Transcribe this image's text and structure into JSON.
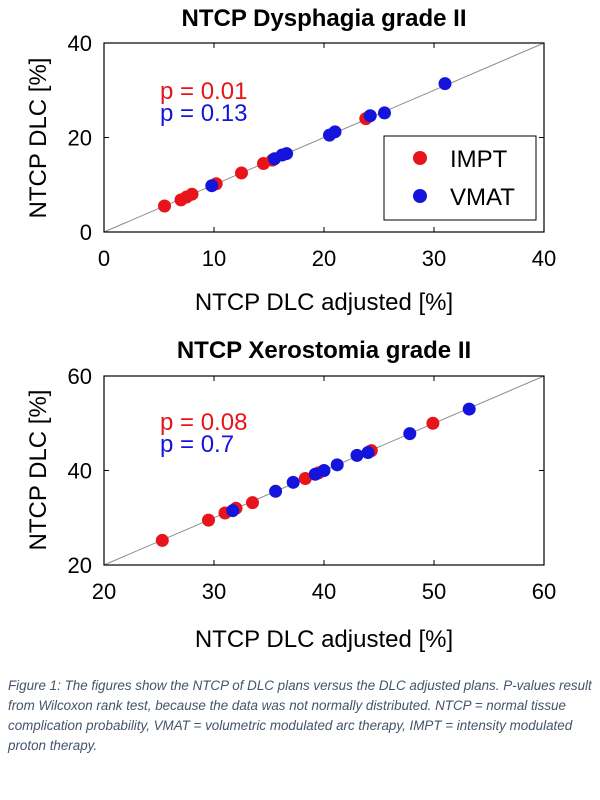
{
  "chart_data": [
    {
      "type": "scatter",
      "title": "NTCP Dysphagia grade II",
      "xlabel": "NTCP DLC adjusted [%]",
      "ylabel": "NTCP DLC [%]",
      "xlim": [
        0,
        40
      ],
      "ylim": [
        0,
        40
      ],
      "xticks": [
        "0",
        "10",
        "20",
        "30",
        "40"
      ],
      "yticks": [
        "0",
        "20",
        "40"
      ],
      "xtick_values": [
        0,
        10,
        20,
        30,
        40
      ],
      "ytick_values": [
        0,
        20,
        40
      ],
      "grid": false,
      "identity_line": true,
      "legend_position": "bottom-right",
      "annotations": [
        {
          "text": "p = 0.01",
          "color": "#e8141c"
        },
        {
          "text": "p = 0.13",
          "color": "#1414dc"
        }
      ],
      "series": [
        {
          "name": "IMPT",
          "color": "#e8141c",
          "points": [
            [
              5.5,
              5.5
            ],
            [
              7.0,
              6.8
            ],
            [
              7.5,
              7.4
            ],
            [
              8.0,
              8.0
            ],
            [
              10.2,
              10.2
            ],
            [
              12.5,
              12.5
            ],
            [
              14.5,
              14.5
            ],
            [
              15.3,
              15.2
            ],
            [
              23.8,
              24.0
            ]
          ]
        },
        {
          "name": "VMAT",
          "color": "#1414dc",
          "points": [
            [
              9.8,
              9.8
            ],
            [
              15.5,
              15.5
            ],
            [
              16.2,
              16.3
            ],
            [
              16.6,
              16.6
            ],
            [
              20.5,
              20.5
            ],
            [
              21.0,
              21.2
            ],
            [
              24.2,
              24.6
            ],
            [
              25.5,
              25.2
            ],
            [
              31.0,
              31.4
            ]
          ]
        }
      ]
    },
    {
      "type": "scatter",
      "title": "NTCP Xerostomia grade II",
      "xlabel": "NTCP DLC adjusted [%]",
      "ylabel": "NTCP DLC [%]",
      "xlim": [
        20,
        60
      ],
      "ylim": [
        20,
        60
      ],
      "xticks": [
        "20",
        "30",
        "40",
        "50",
        "60"
      ],
      "yticks": [
        "20",
        "40",
        "60"
      ],
      "xtick_values": [
        20,
        30,
        40,
        50,
        60
      ],
      "ytick_values": [
        20,
        40,
        60
      ],
      "grid": false,
      "identity_line": true,
      "annotations": [
        {
          "text": "p = 0.08",
          "color": "#e8141c"
        },
        {
          "text": "p = 0.7",
          "color": "#1414dc"
        }
      ],
      "series": [
        {
          "name": "IMPT",
          "color": "#e8141c",
          "points": [
            [
              25.3,
              25.2
            ],
            [
              29.5,
              29.5
            ],
            [
              31.0,
              31.0
            ],
            [
              32.0,
              32.0
            ],
            [
              33.5,
              33.2
            ],
            [
              38.3,
              38.3
            ],
            [
              39.5,
              39.5
            ],
            [
              44.3,
              44.2
            ],
            [
              49.9,
              50.0
            ]
          ]
        },
        {
          "name": "VMAT",
          "color": "#1414dc",
          "points": [
            [
              31.7,
              31.5
            ],
            [
              35.6,
              35.6
            ],
            [
              37.2,
              37.5
            ],
            [
              39.2,
              39.2
            ],
            [
              40.0,
              40.0
            ],
            [
              41.2,
              41.2
            ],
            [
              43.0,
              43.2
            ],
            [
              44.0,
              43.8
            ],
            [
              47.8,
              47.8
            ],
            [
              53.2,
              53.0
            ]
          ]
        }
      ]
    }
  ],
  "caption": "Figure 1: The figures show the NTCP of DLC plans versus the DLC adjusted plans. P-values result from Wilcoxon rank test, because the data was not normally distributed. NTCP = normal tissue complication probability, VMAT = volumetric modulated arc therapy, IMPT = intensity modulated proton therapy."
}
